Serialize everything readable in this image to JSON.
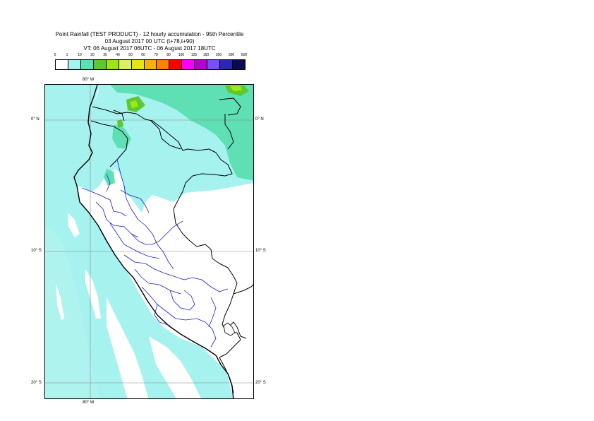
{
  "title": {
    "line1": "Point Rainfall (TEST PRODUCT) - 12 hourly accumulation - 95th Percentile",
    "line2": "03 August 2017 00 UTC (t+78,t+90)",
    "line3": "VT: 06 August 2017 06UTC - 06 August 2017 18UTC"
  },
  "scale": {
    "labels": [
      "0",
      "1",
      "10",
      "20",
      "30",
      "40",
      "50",
      "60",
      "70",
      "80",
      "100",
      "125",
      "150",
      "200",
      "300",
      "500"
    ],
    "colors": [
      "#ffffff",
      "#a6f2ee",
      "#5fe0b4",
      "#5cc832",
      "#a0e614",
      "#dcf064",
      "#e6e614",
      "#f5b400",
      "#fa8200",
      "#fa0000",
      "#fa00fa",
      "#b400c8",
      "#7850fa",
      "#2828b4",
      "#0a0a50"
    ]
  },
  "axes": {
    "lon_top": "80° W",
    "lon_bottom": "80° W",
    "lat_left": [
      "0° N",
      "10° S",
      "20° S"
    ],
    "lat_right": [
      "0° N",
      "10° S",
      "20° S"
    ]
  },
  "colors": {
    "grid": "#888888",
    "borders": "#000000",
    "regions": "#1a1ad0"
  }
}
